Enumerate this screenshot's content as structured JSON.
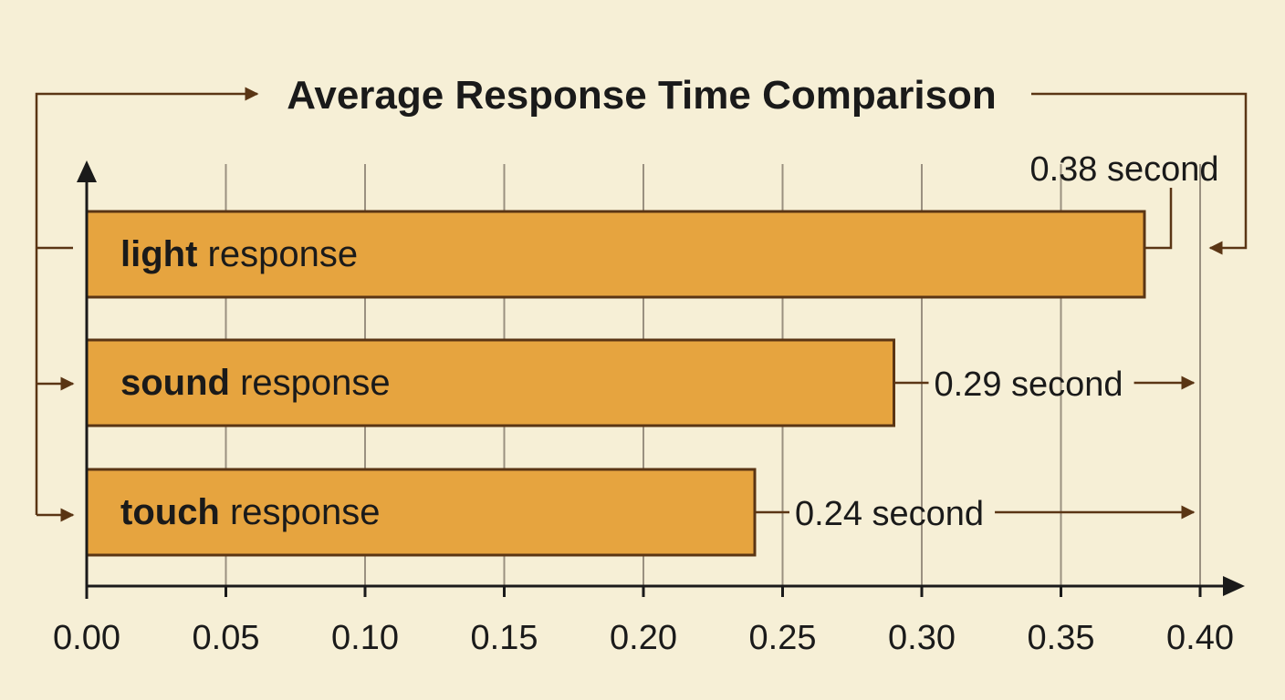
{
  "colors": {
    "background": "#f6efd6",
    "bar_fill": "#e6a43f",
    "bar_stroke": "#5a3514",
    "connector": "#5a3514",
    "gridline": "#9a9080",
    "axis": "#1a1a1a"
  },
  "chart_data": {
    "type": "bar",
    "orientation": "horizontal",
    "title": "Average Response Time Comparison",
    "categories": [
      {
        "bold": "light",
        "rest": " response"
      },
      {
        "bold": "sound",
        "rest": " response"
      },
      {
        "bold": "touch",
        "rest": " response"
      }
    ],
    "values": [
      0.38,
      0.29,
      0.24
    ],
    "value_labels": [
      "0.38 second",
      "0.29 second",
      "0.24 second"
    ],
    "x_ticks": [
      "0.00",
      "0.05",
      "0.10",
      "0.15",
      "0.20",
      "0.25",
      "0.30",
      "0.35",
      "0.40"
    ],
    "xlim": [
      0,
      0.4
    ],
    "grid": true,
    "legend": "none"
  }
}
